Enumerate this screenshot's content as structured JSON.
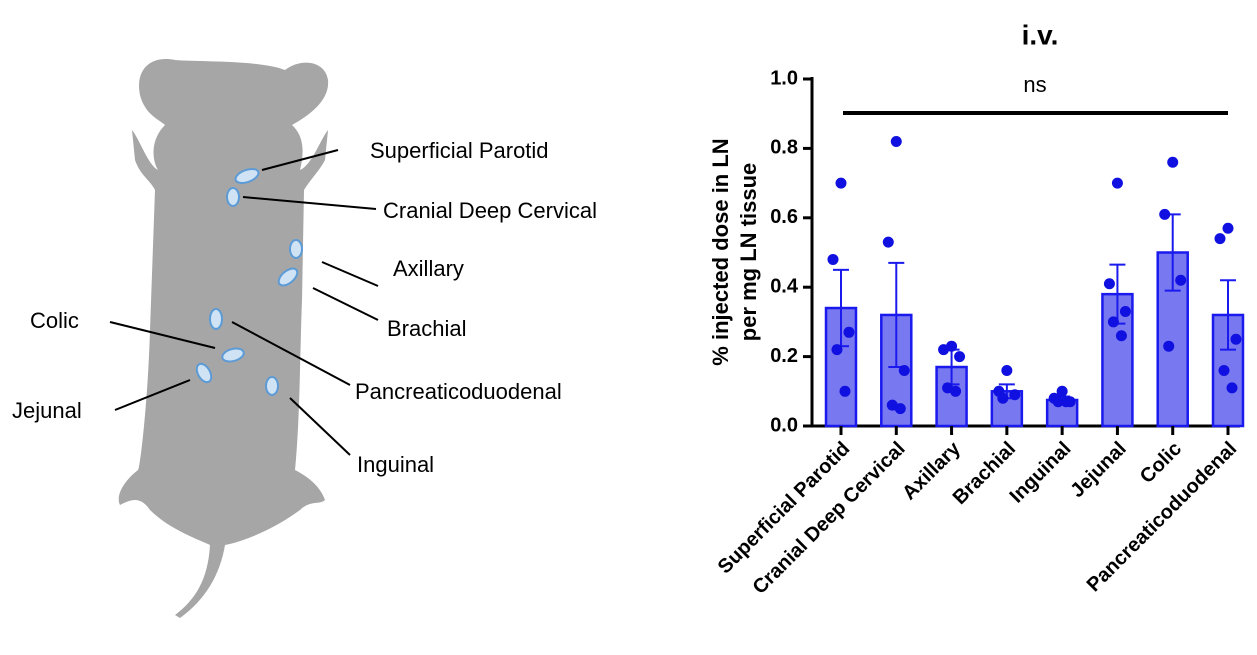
{
  "diagram": {
    "labels": [
      "Superficial Parotid",
      "Cranial Deep Cervical",
      "Axillary",
      "Brachial",
      "Colic",
      "Jejunal",
      "Pancreaticoduodenal",
      "Inguinal"
    ]
  },
  "chart_data": {
    "type": "bar",
    "title": "i.v.",
    "ylabel": [
      "% injected dose in LN",
      "per mg LN tissue"
    ],
    "annotation": "ns",
    "categories": [
      "Superficial Parotid",
      "Cranial Deep Cervical",
      "Axillary",
      "Brachial",
      "Inguinal",
      "Jejunal",
      "Colic",
      "Pancreaticoduodenal"
    ],
    "values": [
      0.34,
      0.32,
      0.17,
      0.1,
      0.075,
      0.38,
      0.5,
      0.32
    ],
    "errors": [
      0.11,
      0.15,
      0.05,
      0.02,
      0.01,
      0.085,
      0.11,
      0.1
    ],
    "points": [
      [
        0.7,
        0.48,
        0.27,
        0.22,
        0.1
      ],
      [
        0.82,
        0.53,
        0.16,
        0.06,
        0.05
      ],
      [
        0.23,
        0.22,
        0.2,
        0.11,
        0.1
      ],
      [
        0.16,
        0.1,
        0.09,
        0.08
      ],
      [
        0.1,
        0.08,
        0.07,
        0.07,
        0.07
      ],
      [
        0.7,
        0.41,
        0.33,
        0.3,
        0.26
      ],
      [
        0.76,
        0.61,
        0.42,
        0.23
      ],
      [
        0.57,
        0.54,
        0.25,
        0.16,
        0.11
      ]
    ],
    "color": "#7878f0",
    "edge_color": "#1a1aee",
    "point_color": "#1010e0",
    "ylim": [
      0,
      1
    ],
    "yticks": [
      {
        "value": 0,
        "label": "0.0"
      },
      0.2,
      0.4,
      0.6,
      0.8,
      {
        "value": 1,
        "label": "1.0"
      }
    ]
  }
}
